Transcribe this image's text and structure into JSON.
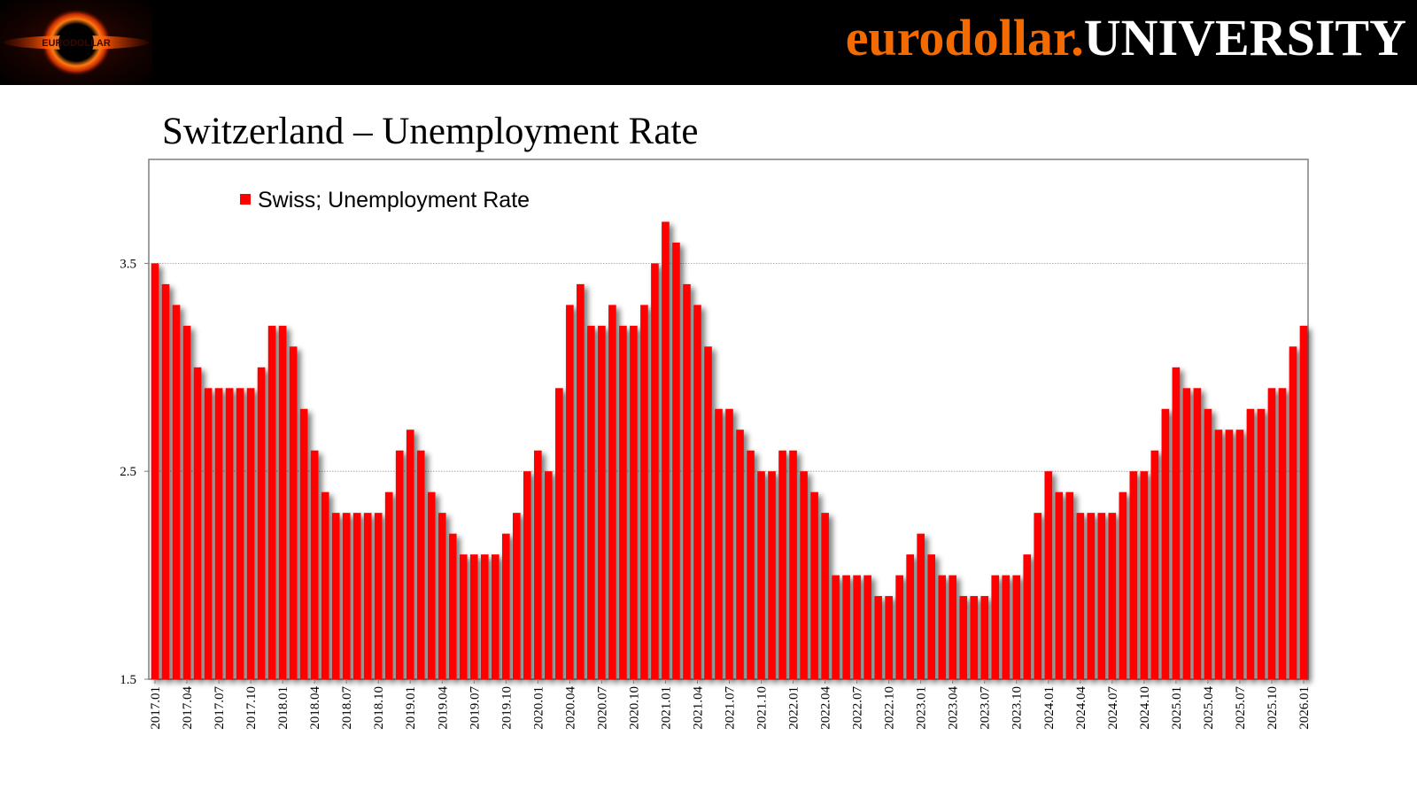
{
  "header": {
    "brand_orange": "eurodollar.",
    "brand_white": "UNIVERSITY",
    "logo_icon": "black-hole-icon",
    "logo_text": "EURODOLLAR"
  },
  "colors": {
    "accent": "#f26a00",
    "bar": "#ff0000",
    "header_bg": "#000000"
  },
  "chart_data": {
    "type": "bar",
    "title": "Switzerland – Unemployment Rate",
    "legend": [
      "Swiss; Unemployment Rate"
    ],
    "legend_position": "top-left",
    "xlabel": "",
    "ylabel": "",
    "ylim": [
      1.5,
      4.0
    ],
    "yticks": [
      "1.5",
      "2.5",
      "3.5"
    ],
    "grid": true,
    "xtick_labels": [
      "2017.01",
      "2017.04",
      "2017.07",
      "2017.10",
      "2018.01",
      "2018.04",
      "2018.07",
      "2018.10",
      "2019.01",
      "2019.04",
      "2019.07",
      "2019.10",
      "2020.01",
      "2020.04",
      "2020.07",
      "2020.10",
      "2021.01",
      "2021.04",
      "2021.07",
      "2021.10",
      "2022.01",
      "2022.04",
      "2022.07",
      "2022.10",
      "2023.01",
      "2023.04",
      "2023.07",
      "2023.10",
      "2024.01",
      "2024.04",
      "2024.07",
      "2024.10",
      "2025.01",
      "2025.04",
      "2025.07",
      "2025.10",
      "2026.01"
    ],
    "series": [
      {
        "name": "Swiss; Unemployment Rate",
        "values": [
          3.5,
          3.4,
          3.3,
          3.2,
          3.0,
          2.9,
          2.9,
          2.9,
          2.9,
          2.9,
          3.0,
          3.2,
          3.2,
          3.1,
          2.8,
          2.6,
          2.4,
          2.3,
          2.3,
          2.3,
          2.3,
          2.3,
          2.4,
          2.6,
          2.7,
          2.6,
          2.4,
          2.3,
          2.2,
          2.1,
          2.1,
          2.1,
          2.1,
          2.2,
          2.3,
          2.5,
          2.6,
          2.5,
          2.9,
          3.3,
          3.4,
          3.2,
          3.2,
          3.3,
          3.2,
          3.2,
          3.3,
          3.5,
          3.7,
          3.6,
          3.4,
          3.3,
          3.1,
          2.8,
          2.8,
          2.7,
          2.6,
          2.5,
          2.5,
          2.6,
          2.6,
          2.5,
          2.4,
          2.3,
          2.0,
          2.0,
          2.0,
          2.0,
          1.9,
          1.9,
          2.0,
          2.1,
          2.2,
          2.1,
          2.0,
          2.0,
          1.9,
          1.9,
          1.9,
          2.0,
          2.0,
          2.0,
          2.1,
          2.3,
          2.5,
          2.4,
          2.4,
          2.3,
          2.3,
          2.3,
          2.3,
          2.4,
          2.5,
          2.5,
          2.6,
          2.8,
          3.0,
          2.9,
          2.9,
          2.8,
          2.7,
          2.7,
          2.7,
          2.8,
          2.8,
          2.9,
          2.9,
          3.1,
          3.2
        ]
      }
    ]
  }
}
